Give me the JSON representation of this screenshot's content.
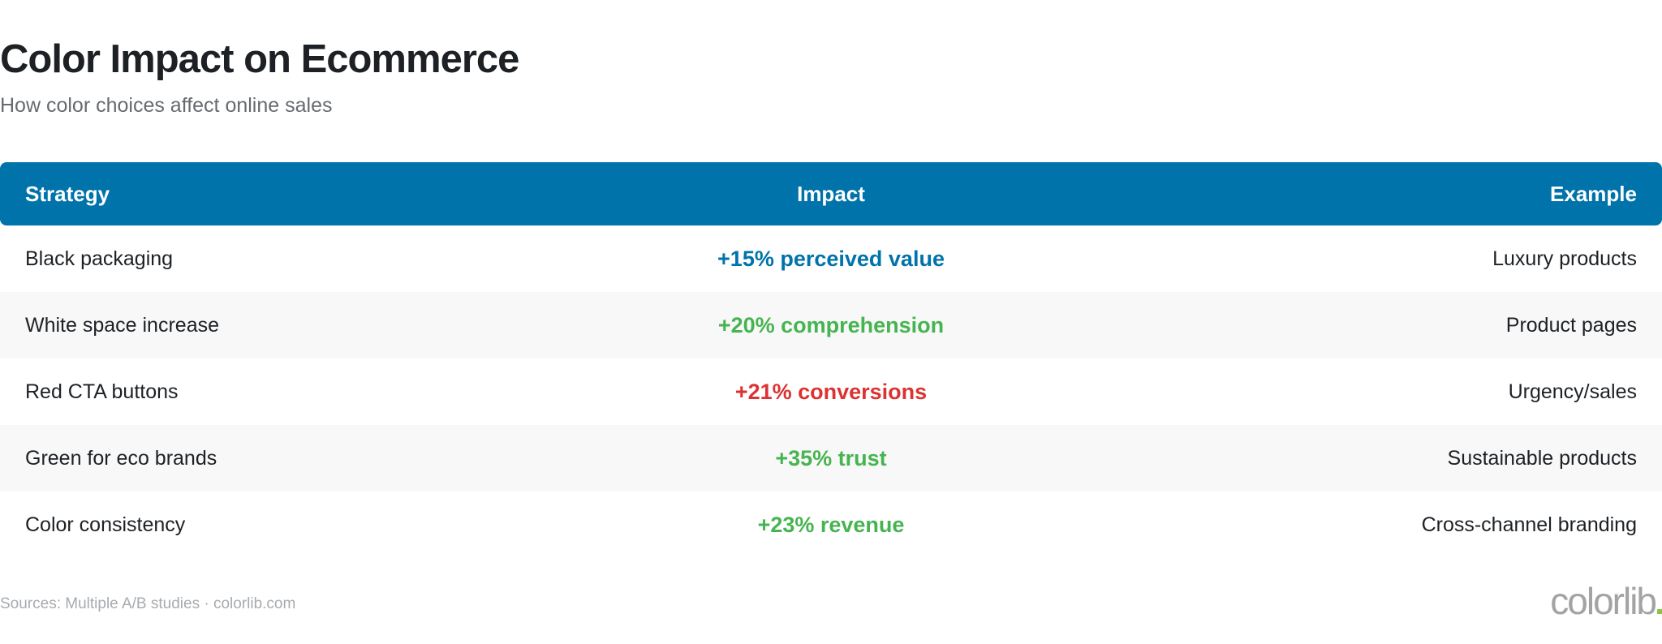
{
  "header": {
    "title": "Color Impact on Ecommerce",
    "subtitle": "How color choices affect online sales"
  },
  "colors": {
    "header_bg": "#0073aa",
    "blue": "#0073aa",
    "green": "#46b450",
    "red": "#dc3232"
  },
  "table": {
    "columns": [
      "Strategy",
      "Impact",
      "Example"
    ],
    "rows": [
      {
        "strategy": "Black packaging",
        "impact": "+15% perceived value",
        "example": "Luxury products",
        "impact_color": "#0073aa"
      },
      {
        "strategy": "White space increase",
        "impact": "+20% comprehension",
        "example": "Product pages",
        "impact_color": "#46b450"
      },
      {
        "strategy": "Red CTA buttons",
        "impact": "+21% conversions",
        "example": "Urgency/sales",
        "impact_color": "#dc3232"
      },
      {
        "strategy": "Green for eco brands",
        "impact": "+35% trust",
        "example": "Sustainable products",
        "impact_color": "#46b450"
      },
      {
        "strategy": "Color consistency",
        "impact": "+23% revenue",
        "example": "Cross-channel branding",
        "impact_color": "#46b450"
      }
    ]
  },
  "footer": {
    "source": "Sources: Multiple A/B studies · colorlib.com",
    "logo": "colorlib"
  }
}
